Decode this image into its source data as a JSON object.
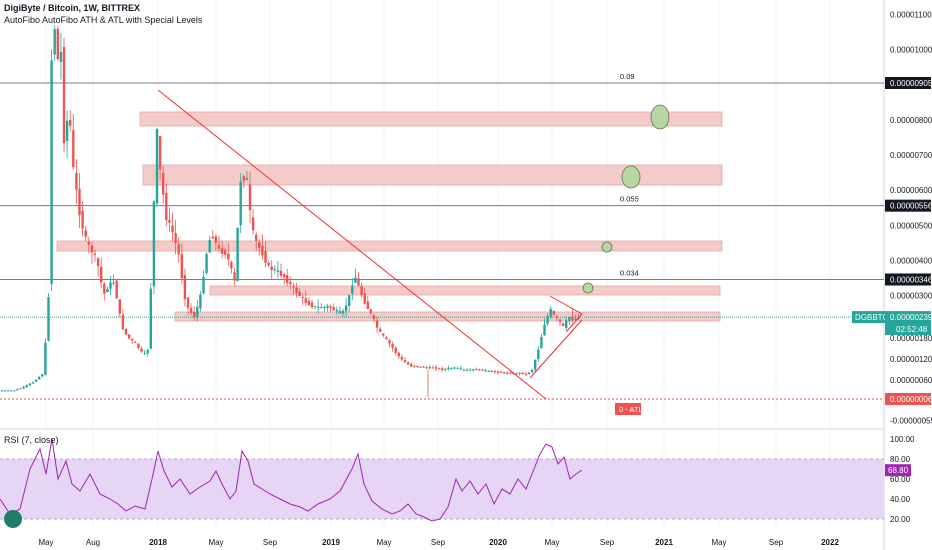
{
  "header": {
    "title": "DigiByte / Bitcoin, 1W, BITTREX",
    "indicator": "AutoFibo AutoFibo ATH & ATL with Special Levels",
    "rsi_label": "RSI (7, close)"
  },
  "fib_labels": [
    "0.09",
    "0.055",
    "0.034"
  ],
  "atl_label": "0 - ATL",
  "symbol_tag": "DGBBTC",
  "price_tag": "0.00000239",
  "countdown": "02:52:48",
  "rsi_value": "68.80",
  "colors": {
    "up": "#26a69a",
    "down": "#ef5350",
    "zone_fill": "#f2c4c1",
    "zone_stroke": "#e28c86",
    "trend": "#ef2e2e",
    "rsi": "#9c27b0",
    "rsi_band": "#e7d5f5",
    "circle_fill": "#b8d6a4",
    "price_tag_bg": "#26a69a"
  },
  "chart_data": {
    "type": "candlestick",
    "y_axis_labels": [
      "0.00001100",
      "0.00001000",
      "0.00000905",
      "0.00000800",
      "0.00000700",
      "0.00000600",
      "0.00000556",
      "0.00000500",
      "0.00000400",
      "0.00000346",
      "0.00000300",
      "0.00000239",
      "0.00000180",
      "0.00000120",
      "0.00000060",
      "0.00000006",
      "-0.00000055"
    ],
    "x_axis_labels": [
      "May",
      "Aug",
      "2018",
      "May",
      "Sep",
      "2019",
      "May",
      "Sep",
      "2020",
      "May",
      "Sep",
      "2021",
      "May",
      "Sep",
      "2022"
    ],
    "ylim": [
      -5.5e-07,
      1.14e-05
    ],
    "fib_levels": [
      {
        "label": "0.09",
        "price": 9.05e-06
      },
      {
        "label": "0.055",
        "price": 5.56e-06
      },
      {
        "label": "0.034",
        "price": 3.46e-06
      }
    ],
    "atl_price": 6e-08,
    "last_price": 2.39e-06,
    "rsi_axis_labels": [
      "100.00",
      "80.00",
      "60.00",
      "40.00",
      "20.00"
    ],
    "rsi_band": [
      20,
      80
    ],
    "rsi_last": 68.8
  }
}
